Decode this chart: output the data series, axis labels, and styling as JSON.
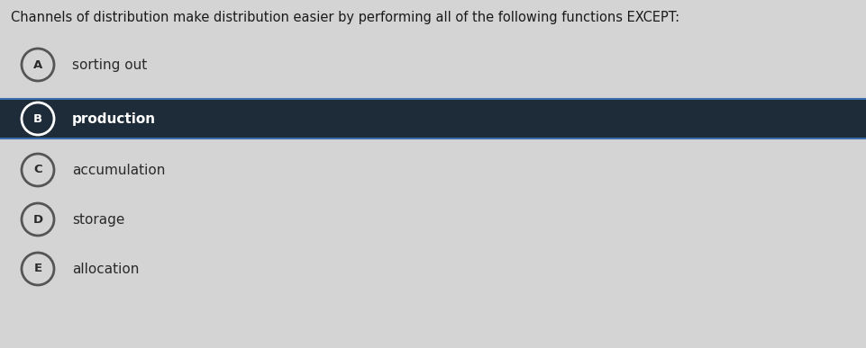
{
  "title": "Channels of distribution make distribution easier by performing all of the following functions EXCEPT:",
  "title_fontsize": 10.5,
  "title_color": "#1a1a1a",
  "background_color": "#d4d4d4",
  "options": [
    {
      "letter": "A",
      "text": "sorting out",
      "selected": false
    },
    {
      "letter": "B",
      "text": "production",
      "selected": true
    },
    {
      "letter": "C",
      "text": "accumulation",
      "selected": false
    },
    {
      "letter": "D",
      "text": "storage",
      "selected": false
    },
    {
      "letter": "E",
      "text": "allocation",
      "selected": false
    }
  ],
  "selected_bg_color": "#1e2b38",
  "selected_text_color": "#ffffff",
  "selected_circle_fill": "#1e2b38",
  "selected_circle_border": "#ffffff",
  "selected_border_accent": "#3a6ea8",
  "unselected_text_color": "#2a2a2a",
  "unselected_circle_fill": "#d4d4d4",
  "unselected_circle_border": "#555555",
  "letter_fontsize": 9.5,
  "text_fontsize": 11,
  "fig_width": 9.62,
  "fig_height": 3.87,
  "dpi": 100
}
